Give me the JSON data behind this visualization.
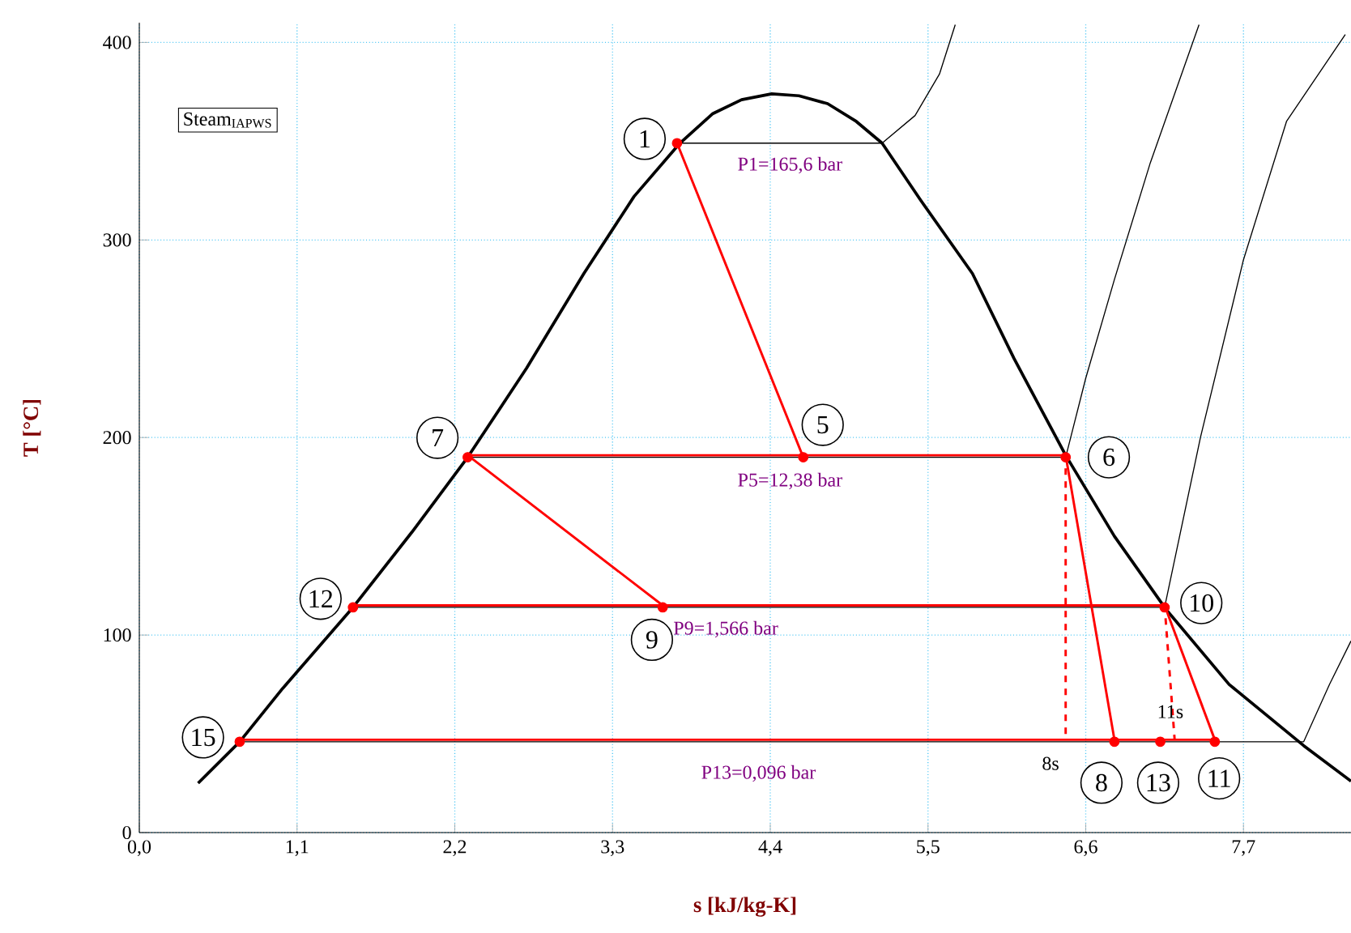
{
  "chart_data": {
    "type": "line",
    "xlabel": "s [kJ/kg-K]",
    "ylabel": "T [°C]",
    "xlim": [
      0,
      8.45
    ],
    "ylim": [
      0,
      410
    ],
    "xticks": [
      {
        "value": 0,
        "label": "0,0"
      },
      {
        "value": 1.1,
        "label": "1,1"
      },
      {
        "value": 2.2,
        "label": "2,2"
      },
      {
        "value": 3.3,
        "label": "3,3"
      },
      {
        "value": 4.4,
        "label": "4,4"
      },
      {
        "value": 5.5,
        "label": "5,5"
      },
      {
        "value": 6.6,
        "label": "6,6"
      },
      {
        "value": 7.7,
        "label": "7,7"
      }
    ],
    "yticks": [
      0,
      100,
      200,
      300,
      400
    ],
    "grid": true,
    "series": [
      {
        "color": "#000000",
        "x": [
          0.41,
          0.7,
          1.0,
          1.49,
          1.9,
          2.29,
          2.7,
          3.1,
          3.45,
          3.77,
          4.0,
          4.2,
          4.41,
          4.6,
          4.8,
          5.0,
          5.18,
          5.45,
          5.81,
          6.1,
          6.46,
          6.8,
          7.16,
          7.6,
          8.12,
          8.45
        ],
        "values": [
          25,
          46,
          73,
          114,
          152,
          190,
          235,
          283,
          322,
          349,
          364,
          371,
          374,
          373,
          369,
          360,
          349,
          320,
          283,
          240,
          191,
          150,
          113,
          75,
          44,
          26
        ]
      },
      {
        "color": "#000000",
        "x": [
          3.77,
          5.18,
          5.41,
          5.58,
          5.69
        ],
        "values": [
          349,
          349,
          363,
          384,
          409
        ]
      },
      {
        "color": "#000000",
        "x": [
          2.29,
          6.46,
          6.6,
          6.8,
          7.05,
          7.39
        ],
        "values": [
          190,
          190,
          230,
          280,
          339,
          409
        ]
      },
      {
        "color": "#000000",
        "x": [
          1.49,
          7.15,
          7.4,
          7.7,
          8.0,
          8.41
        ],
        "values": [
          114,
          114,
          200,
          290,
          360,
          404
        ]
      },
      {
        "color": "#000000",
        "x": [
          0.7,
          8.12,
          8.3,
          8.45
        ],
        "values": [
          46,
          46,
          75,
          97
        ]
      },
      {
        "color": "#ff0000",
        "x": [
          3.75,
          4.63
        ],
        "values": [
          349,
          190
        ]
      },
      {
        "color": "#ff0000",
        "x": [
          2.29,
          6.46
        ],
        "values": [
          191,
          191
        ]
      },
      {
        "color": "#ff0000",
        "x": [
          2.29,
          3.65
        ],
        "values": [
          191,
          115
        ]
      },
      {
        "color": "#ff0000",
        "x": [
          1.49,
          7.15
        ],
        "values": [
          115,
          115
        ]
      },
      {
        "color": "#ff0000",
        "x": [
          0.7,
          7.5
        ],
        "values": [
          47,
          47
        ]
      },
      {
        "color": "#ff0000",
        "x": [
          6.46,
          6.8
        ],
        "values": [
          191,
          47
        ]
      },
      {
        "color": "#ff0000",
        "x": [
          7.15,
          7.5
        ],
        "values": [
          115,
          47
        ]
      },
      {
        "color": "#ff0000",
        "line_style": "dashed",
        "x": [
          6.46,
          6.46
        ],
        "values": [
          191,
          47
        ]
      },
      {
        "color": "#ff0000",
        "line_style": "dashed",
        "x": [
          7.15,
          7.22
        ],
        "values": [
          115,
          47
        ]
      },
      {
        "type": "scatter",
        "marker": "circle",
        "color": "#ff0000",
        "x": [
          3.75,
          4.63,
          6.46,
          2.29,
          3.65,
          7.15,
          1.49,
          0.7,
          6.8,
          7.12,
          7.5
        ],
        "values": [
          349,
          190,
          190,
          190,
          114,
          114,
          114,
          46,
          46,
          46,
          46
        ]
      }
    ],
    "annotations": [
      "Steam$_{IAPWS}$",
      "P1=165,6 bar",
      "P5=12,38 bar",
      "P9=1,566 bar",
      "P13=0,096 bar",
      {
        "text": "8s",
        "x": 6.46,
        "y": 47
      },
      {
        "text": "11s",
        "x": 7.22,
        "y": 47
      },
      {
        "text": "1",
        "x": 3.75,
        "y": 349
      },
      {
        "text": "5",
        "x": 4.63,
        "y": 190
      },
      {
        "text": "6",
        "x": 6.46,
        "y": 190
      },
      {
        "text": "7",
        "x": 2.29,
        "y": 190
      },
      {
        "text": "9",
        "x": 3.65,
        "y": 114
      },
      {
        "text": "10",
        "x": 7.15,
        "y": 114
      },
      {
        "text": "12",
        "x": 1.49,
        "y": 114
      },
      {
        "text": "15",
        "x": 0.7,
        "y": 46
      },
      {
        "text": "8",
        "x": 6.8,
        "y": 46
      },
      {
        "text": "13",
        "x": 7.12,
        "y": 46
      },
      {
        "text": "11",
        "x": 7.5,
        "y": 46
      }
    ]
  }
}
